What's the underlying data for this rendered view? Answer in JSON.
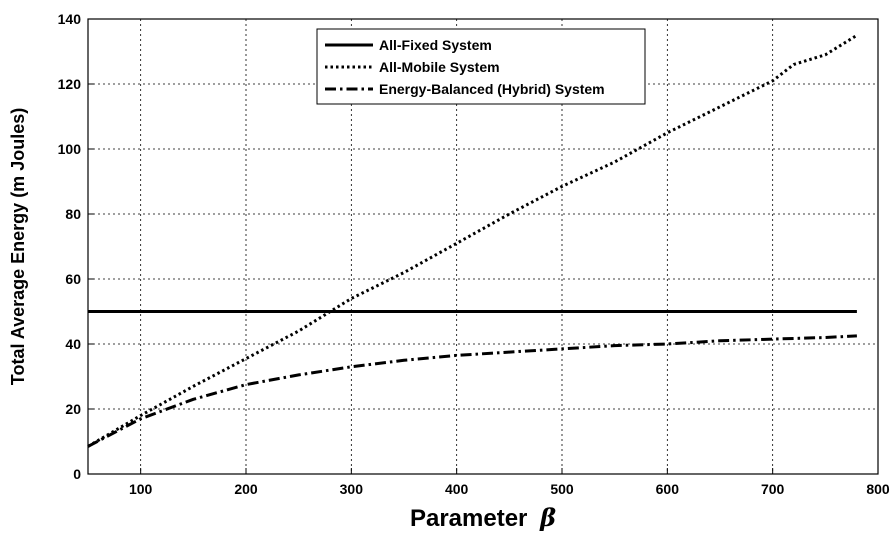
{
  "chart_data": {
    "type": "line",
    "xlabel": "Parameter",
    "xlabel_symbol": "β",
    "ylabel": "Total Average Energy (m Joules)",
    "xlim": [
      50,
      800
    ],
    "ylim": [
      0,
      140
    ],
    "xticks": [
      100,
      200,
      300,
      400,
      500,
      600,
      700,
      800
    ],
    "yticks": [
      0,
      20,
      40,
      60,
      80,
      100,
      120,
      140
    ],
    "grid": true,
    "legend_position": "top-center",
    "series": [
      {
        "name": "All-Fixed System",
        "style": "solid",
        "x": [
          50,
          780
        ],
        "y": [
          50,
          50
        ]
      },
      {
        "name": "All-Mobile System",
        "style": "dotted",
        "x": [
          50,
          100,
          150,
          200,
          250,
          280,
          300,
          350,
          400,
          450,
          500,
          550,
          600,
          650,
          700,
          720,
          750,
          780
        ],
        "y": [
          8.5,
          18,
          27,
          35.5,
          44,
          50,
          54,
          62,
          71,
          80,
          88.5,
          96,
          105,
          113,
          121,
          126,
          129,
          135
        ]
      },
      {
        "name": "Energy-Balanced (Hybrid) System",
        "style": "dashdot",
        "x": [
          50,
          100,
          150,
          200,
          250,
          300,
          350,
          400,
          450,
          500,
          550,
          600,
          650,
          700,
          750,
          780
        ],
        "y": [
          8.5,
          17,
          23,
          27.5,
          30.5,
          33,
          35,
          36.5,
          37.5,
          38.5,
          39.5,
          40,
          41,
          41.5,
          42,
          42.5
        ]
      }
    ]
  }
}
